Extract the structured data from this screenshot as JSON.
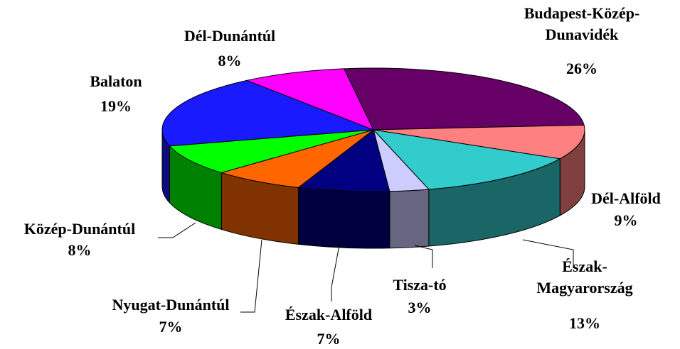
{
  "chart_data": {
    "type": "pie3d",
    "categories": [
      "Budapest-Közép-Dunavidék",
      "Dél-Alföld",
      "Észak-Magyarország",
      "Tisza-tó",
      "Észak-Alföld",
      "Nyugat-Dunántúl",
      "Közép-Dunántúl",
      "Balaton",
      "Dél-Dunántúl"
    ],
    "values": [
      26,
      9,
      13,
      3,
      7,
      7,
      8,
      19,
      8
    ],
    "value_labels": [
      "26%",
      "9%",
      "13%",
      "3%",
      "7%",
      "7%",
      "8%",
      "19%",
      "8%"
    ],
    "colors": [
      "#660066",
      "#ff8080",
      "#33cccc",
      "#ccccff",
      "#000080",
      "#ff6600",
      "#00ff00",
      "#1a1aff",
      "#ff00ff"
    ]
  }
}
